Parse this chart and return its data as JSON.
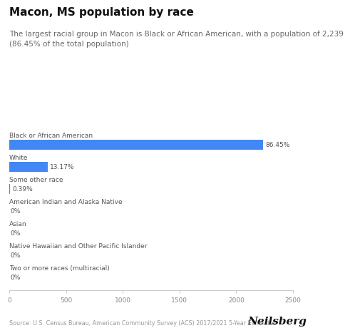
{
  "title": "Macon, MS population by race",
  "subtitle": "The largest racial group in Macon is Black or African American, with a population of 2,239\n(86.45% of the total population)",
  "categories": [
    "Black or African American",
    "White",
    "Some other race",
    "American Indian and Alaska Native",
    "Asian",
    "Native Hawaiian and Other Pacific Islander",
    "Two or more races (multiracial)"
  ],
  "values": [
    2239,
    341,
    10,
    0,
    0,
    0,
    0
  ],
  "percentages": [
    "86.45%",
    "13.17%",
    "0.39%",
    "0%",
    "0%",
    "0%",
    "0%"
  ],
  "bar_color": "#4287f5",
  "xlim": [
    0,
    2500
  ],
  "xticks": [
    0,
    500,
    1000,
    1500,
    2000,
    2500
  ],
  "source": "Source: U.S. Census Bureau, American Community Survey (ACS) 2017/2021 5-Year Estimates",
  "brand": "Neilsberg",
  "bg_color": "#ffffff",
  "title_fontsize": 11,
  "subtitle_fontsize": 7.5,
  "category_fontsize": 6.5,
  "pct_fontsize": 6.5,
  "tick_fontsize": 6.5,
  "bar_height": 0.45
}
